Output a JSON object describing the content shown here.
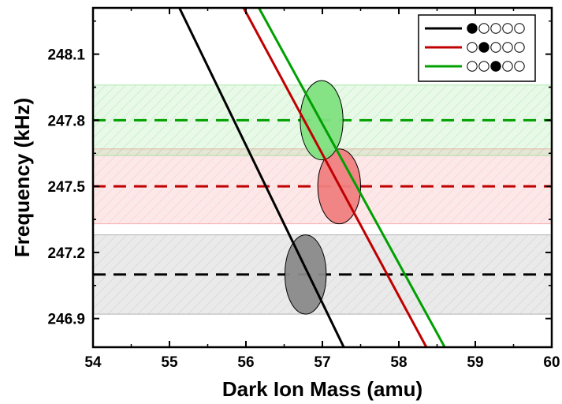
{
  "chart_data": {
    "type": "line",
    "xlabel": "Dark Ion Mass (amu)",
    "ylabel": "Frequency (kHz)",
    "xlim": [
      54,
      60
    ],
    "ylim": [
      246.77,
      248.31
    ],
    "x_ticks": [
      "54",
      "55",
      "56",
      "57",
      "58",
      "59",
      "60"
    ],
    "y_ticks": [
      "246.9",
      "247.2",
      "247.5",
      "247.8",
      "248.1"
    ],
    "x_tick_values": [
      54,
      55,
      56,
      57,
      58,
      59,
      60
    ],
    "y_tick_values": [
      246.9,
      247.2,
      247.5,
      247.8,
      248.1
    ],
    "grid": false,
    "legend_position": "top-right",
    "series": [
      {
        "color": "#000000",
        "legend_pattern": [
          1,
          0,
          0,
          0,
          0
        ],
        "x": [
          55.13,
          57.28
        ],
        "y": [
          248.31,
          246.77
        ],
        "measured_frequency": 247.1,
        "band": [
          246.92,
          247.28
        ],
        "ellipse_center": [
          56.78,
          247.1
        ],
        "ellipse_radius": [
          0.27,
          0.18
        ],
        "fill": "#8a8a8a"
      },
      {
        "color": "#c00000",
        "legend_pattern": [
          0,
          1,
          0,
          0,
          0
        ],
        "x": [
          55.97,
          58.36
        ],
        "y": [
          248.31,
          246.77
        ],
        "measured_frequency": 247.5,
        "band": [
          247.33,
          247.67
        ],
        "ellipse_center": [
          57.22,
          247.5
        ],
        "ellipse_radius": [
          0.28,
          0.17
        ],
        "fill": "#f08080"
      },
      {
        "color": "#00a000",
        "legend_pattern": [
          0,
          0,
          1,
          0,
          0
        ],
        "x": [
          56.17,
          58.6
        ],
        "y": [
          248.31,
          246.77
        ],
        "measured_frequency": 247.8,
        "band": [
          247.64,
          247.96
        ],
        "ellipse_center": [
          56.99,
          247.8
        ],
        "ellipse_radius": [
          0.28,
          0.18
        ],
        "fill": "#80e080"
      }
    ]
  }
}
